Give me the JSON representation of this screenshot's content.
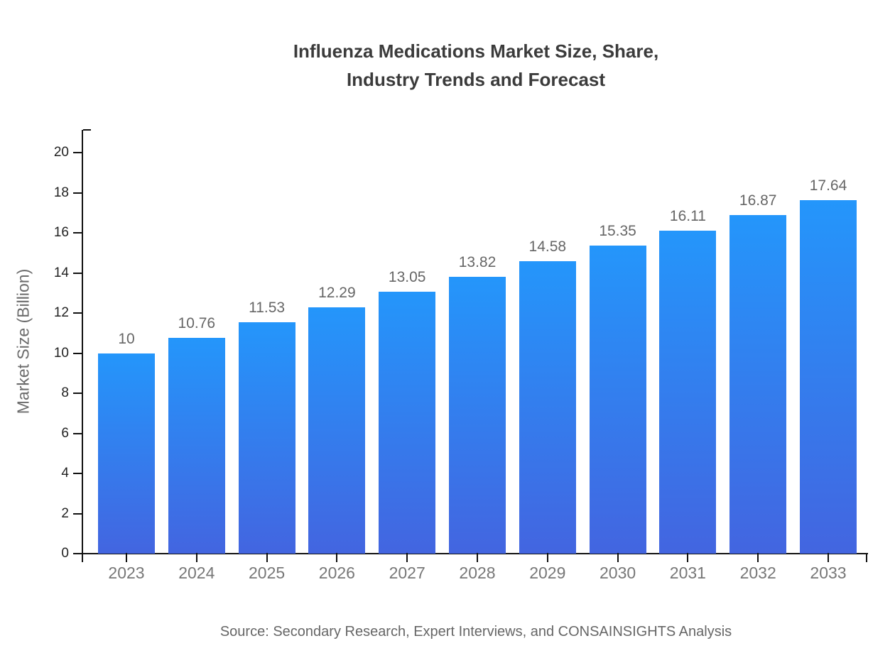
{
  "title": {
    "line1": "Influenza Medications Market Size, Share,",
    "line2": "Industry Trends and Forecast"
  },
  "source": "Source: Secondary Research, Expert Interviews, and CONSAINSIGHTS Analysis",
  "chart_data": {
    "type": "bar",
    "title": "Influenza Medications Market Size, Share, Industry Trends and Forecast",
    "xlabel": "",
    "ylabel": "Market Size (Billion)",
    "categories": [
      "2023",
      "2024",
      "2025",
      "2026",
      "2027",
      "2028",
      "2029",
      "2030",
      "2031",
      "2032",
      "2033"
    ],
    "values": [
      10,
      10.76,
      11.53,
      12.29,
      13.05,
      13.82,
      14.58,
      15.35,
      16.11,
      16.87,
      17.64
    ],
    "value_labels": [
      "10",
      "10.76",
      "11.53",
      "12.29",
      "13.05",
      "13.82",
      "14.58",
      "15.35",
      "16.11",
      "16.87",
      "17.64"
    ],
    "ylim": [
      0,
      21.1
    ],
    "yticks": [
      0,
      2,
      4,
      6,
      8,
      10,
      12,
      14,
      16,
      18,
      20
    ],
    "grid": false,
    "legend": "none",
    "colors": {
      "bar_gradient_top": "#2496fb",
      "bar_gradient_bottom": "#4365e0",
      "axis": "#111111",
      "y_tick_label": "#222222",
      "x_tick_label": "#777777",
      "value_label": "#666666",
      "title": "#3b3b3b",
      "axis_title": "#6b6b6b",
      "source": "#666666"
    }
  }
}
